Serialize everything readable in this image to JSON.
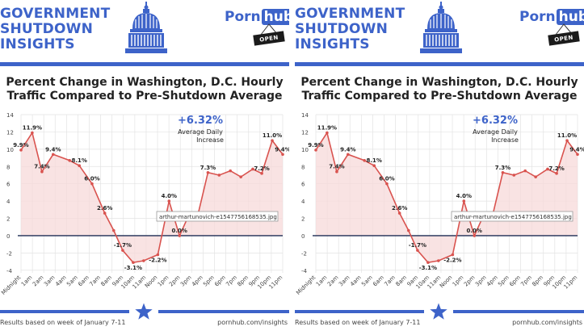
{
  "header": {
    "title_lines": [
      "GOVERNMENT",
      "SHUTDOWN",
      "INSIGHTS"
    ],
    "brand_part1": "Porn",
    "brand_part2": "hub",
    "open_sign": "OPEN"
  },
  "chart_title_lines": [
    "Percent Change in Washington, D.C. Hourly",
    "Traffic Compared to Pre-Shutdown Average"
  ],
  "callout": {
    "value": "+6.32%",
    "lines": [
      "Average Daily",
      "Increase"
    ]
  },
  "tooltip_text": "arthur-martunovich-e1547756168535.jpg",
  "footer": {
    "left": "Results based on week of January 7-11",
    "right": "pornhub.com/insights"
  },
  "colors": {
    "brand_blue": "#3d63c9",
    "line": "#d9534f",
    "area": "#f7dada",
    "text": "#222222"
  },
  "chart_data": {
    "type": "area",
    "categories": [
      "Midnight",
      "1am",
      "2am",
      "3am",
      "4am",
      "5am",
      "6am",
      "7am",
      "8am",
      "9am",
      "10am",
      "11am",
      "Noon",
      "1pm",
      "2pm",
      "3pm",
      "4pm",
      "5pm",
      "6pm",
      "7pm",
      "8pm",
      "9pm",
      "10pm",
      "11pm"
    ],
    "x_steps": 35,
    "points": [
      {
        "x": 0,
        "y": 9.9,
        "label": "9.9%"
      },
      {
        "x": 1.5,
        "y": 11.9,
        "label": "11.9%"
      },
      {
        "x": 2.8,
        "y": 7.4,
        "label": "7.4%"
      },
      {
        "x": 4.3,
        "y": 9.4,
        "label": "9.4%"
      },
      {
        "x": 6.5,
        "y": 8.7,
        "label": ""
      },
      {
        "x": 7.8,
        "y": 8.1,
        "label": "8.1%"
      },
      {
        "x": 9.5,
        "y": 6.0,
        "label": "6.0%"
      },
      {
        "x": 11.2,
        "y": 2.6,
        "label": "2.6%"
      },
      {
        "x": 12.4,
        "y": 0.6,
        "label": ""
      },
      {
        "x": 13.6,
        "y": -1.7,
        "label": "-1.7%"
      },
      {
        "x": 15.0,
        "y": -3.1,
        "label": "-3.1%"
      },
      {
        "x": 16.4,
        "y": -2.9,
        "label": ""
      },
      {
        "x": 18.3,
        "y": -2.2,
        "label": "-2.2%"
      },
      {
        "x": 19.8,
        "y": 4.0,
        "label": "4.0%"
      },
      {
        "x": 21.2,
        "y": 0.0,
        "label": "0.0%"
      },
      {
        "x": 22.3,
        "y": 2.1,
        "label": ""
      },
      {
        "x": 23.6,
        "y": 2.2,
        "label": ""
      },
      {
        "x": 25.0,
        "y": 7.3,
        "label": "7.3%"
      },
      {
        "x": 26.5,
        "y": 7.0,
        "label": ""
      },
      {
        "x": 28.0,
        "y": 7.5,
        "label": ""
      },
      {
        "x": 29.4,
        "y": 6.8,
        "label": ""
      },
      {
        "x": 31.0,
        "y": 7.7,
        "label": ""
      },
      {
        "x": 32.2,
        "y": 7.2,
        "label": "7.2%"
      },
      {
        "x": 33.6,
        "y": 11.0,
        "label": "11.0%"
      },
      {
        "x": 35.0,
        "y": 9.4,
        "label": "9.4%"
      }
    ],
    "yticks": [
      -4,
      -2,
      0,
      2,
      4,
      6,
      8,
      10,
      12,
      14
    ],
    "ylim": [
      -4.3,
      14
    ],
    "grid": true,
    "title": "Percent Change in Washington, D.C. Hourly Traffic Compared to Pre-Shutdown Average",
    "xlabel": "",
    "ylabel": ""
  }
}
